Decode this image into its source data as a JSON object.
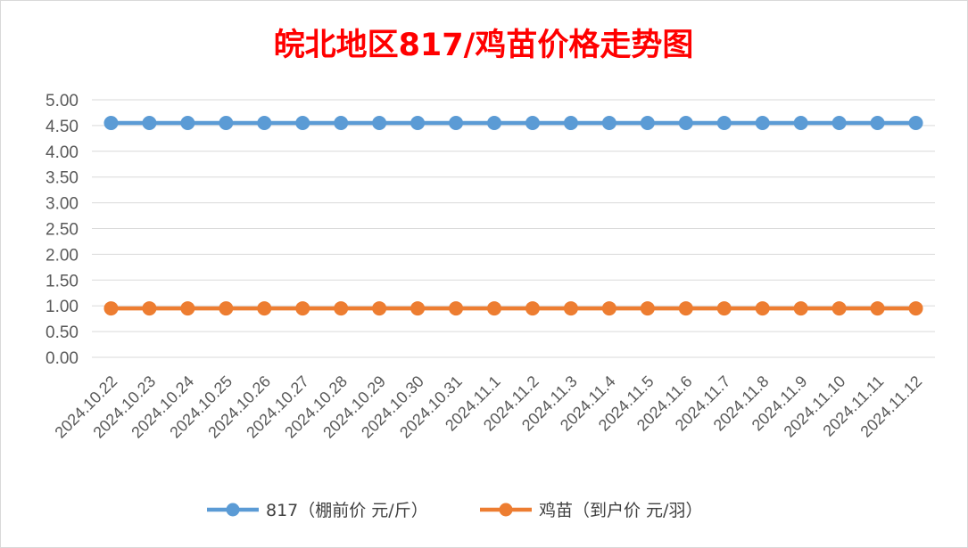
{
  "chart_data": {
    "type": "line",
    "title": "皖北地区817/鸡苗价格走势图",
    "title_color": "#ff0000",
    "categories": [
      "2024.10.22",
      "2024.10.23",
      "2024.10.24",
      "2024.10.25",
      "2024.10.26",
      "2024.10.27",
      "2024.10.28",
      "2024.10.29",
      "2024.10.30",
      "2024.10.31",
      "2024.11.1",
      "2024.11.2",
      "2024.11.3",
      "2024.11.4",
      "2024.11.5",
      "2024.11.6",
      "2024.11.7",
      "2024.11.8",
      "2024.11.9",
      "2024.11.10",
      "2024.11.11",
      "2024.11.12"
    ],
    "series": [
      {
        "name": "817（棚前价 元/斤）",
        "color": "#5b9bd5",
        "values": [
          4.55,
          4.55,
          4.55,
          4.55,
          4.55,
          4.55,
          4.55,
          4.55,
          4.55,
          4.55,
          4.55,
          4.55,
          4.55,
          4.55,
          4.55,
          4.55,
          4.55,
          4.55,
          4.55,
          4.55,
          4.55,
          4.55
        ]
      },
      {
        "name": "鸡苗（到户价 元/羽）",
        "color": "#ed7d31",
        "values": [
          0.95,
          0.95,
          0.95,
          0.95,
          0.95,
          0.95,
          0.95,
          0.95,
          0.95,
          0.95,
          0.95,
          0.95,
          0.95,
          0.95,
          0.95,
          0.95,
          0.95,
          0.95,
          0.95,
          0.95,
          0.95,
          0.95
        ]
      }
    ],
    "ylim": [
      0,
      5
    ],
    "yticks": [
      "0.00",
      "0.50",
      "1.00",
      "1.50",
      "2.00",
      "2.50",
      "3.00",
      "3.50",
      "4.00",
      "4.50",
      "5.00"
    ],
    "grid": true,
    "legend_position": "bottom"
  }
}
